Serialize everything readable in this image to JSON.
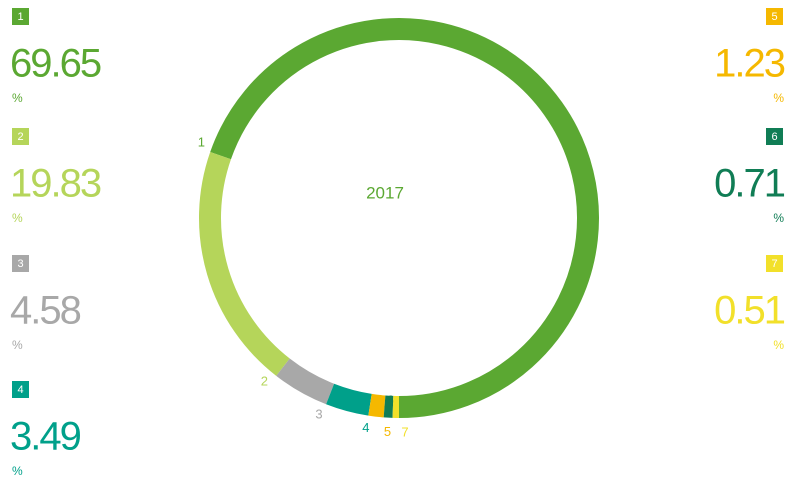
{
  "chart_data": {
    "type": "donut",
    "center_label": "2017",
    "unit": "%",
    "categories": [
      "1",
      "2",
      "3",
      "4",
      "5",
      "6",
      "7"
    ],
    "values": [
      69.65,
      19.83,
      4.58,
      3.49,
      1.23,
      0.71,
      0.51
    ],
    "colors": [
      "#5ba832",
      "#b5d55a",
      "#a8a8a8",
      "#00a08a",
      "#f5b800",
      "#107d55",
      "#f2e02a"
    ]
  }
}
